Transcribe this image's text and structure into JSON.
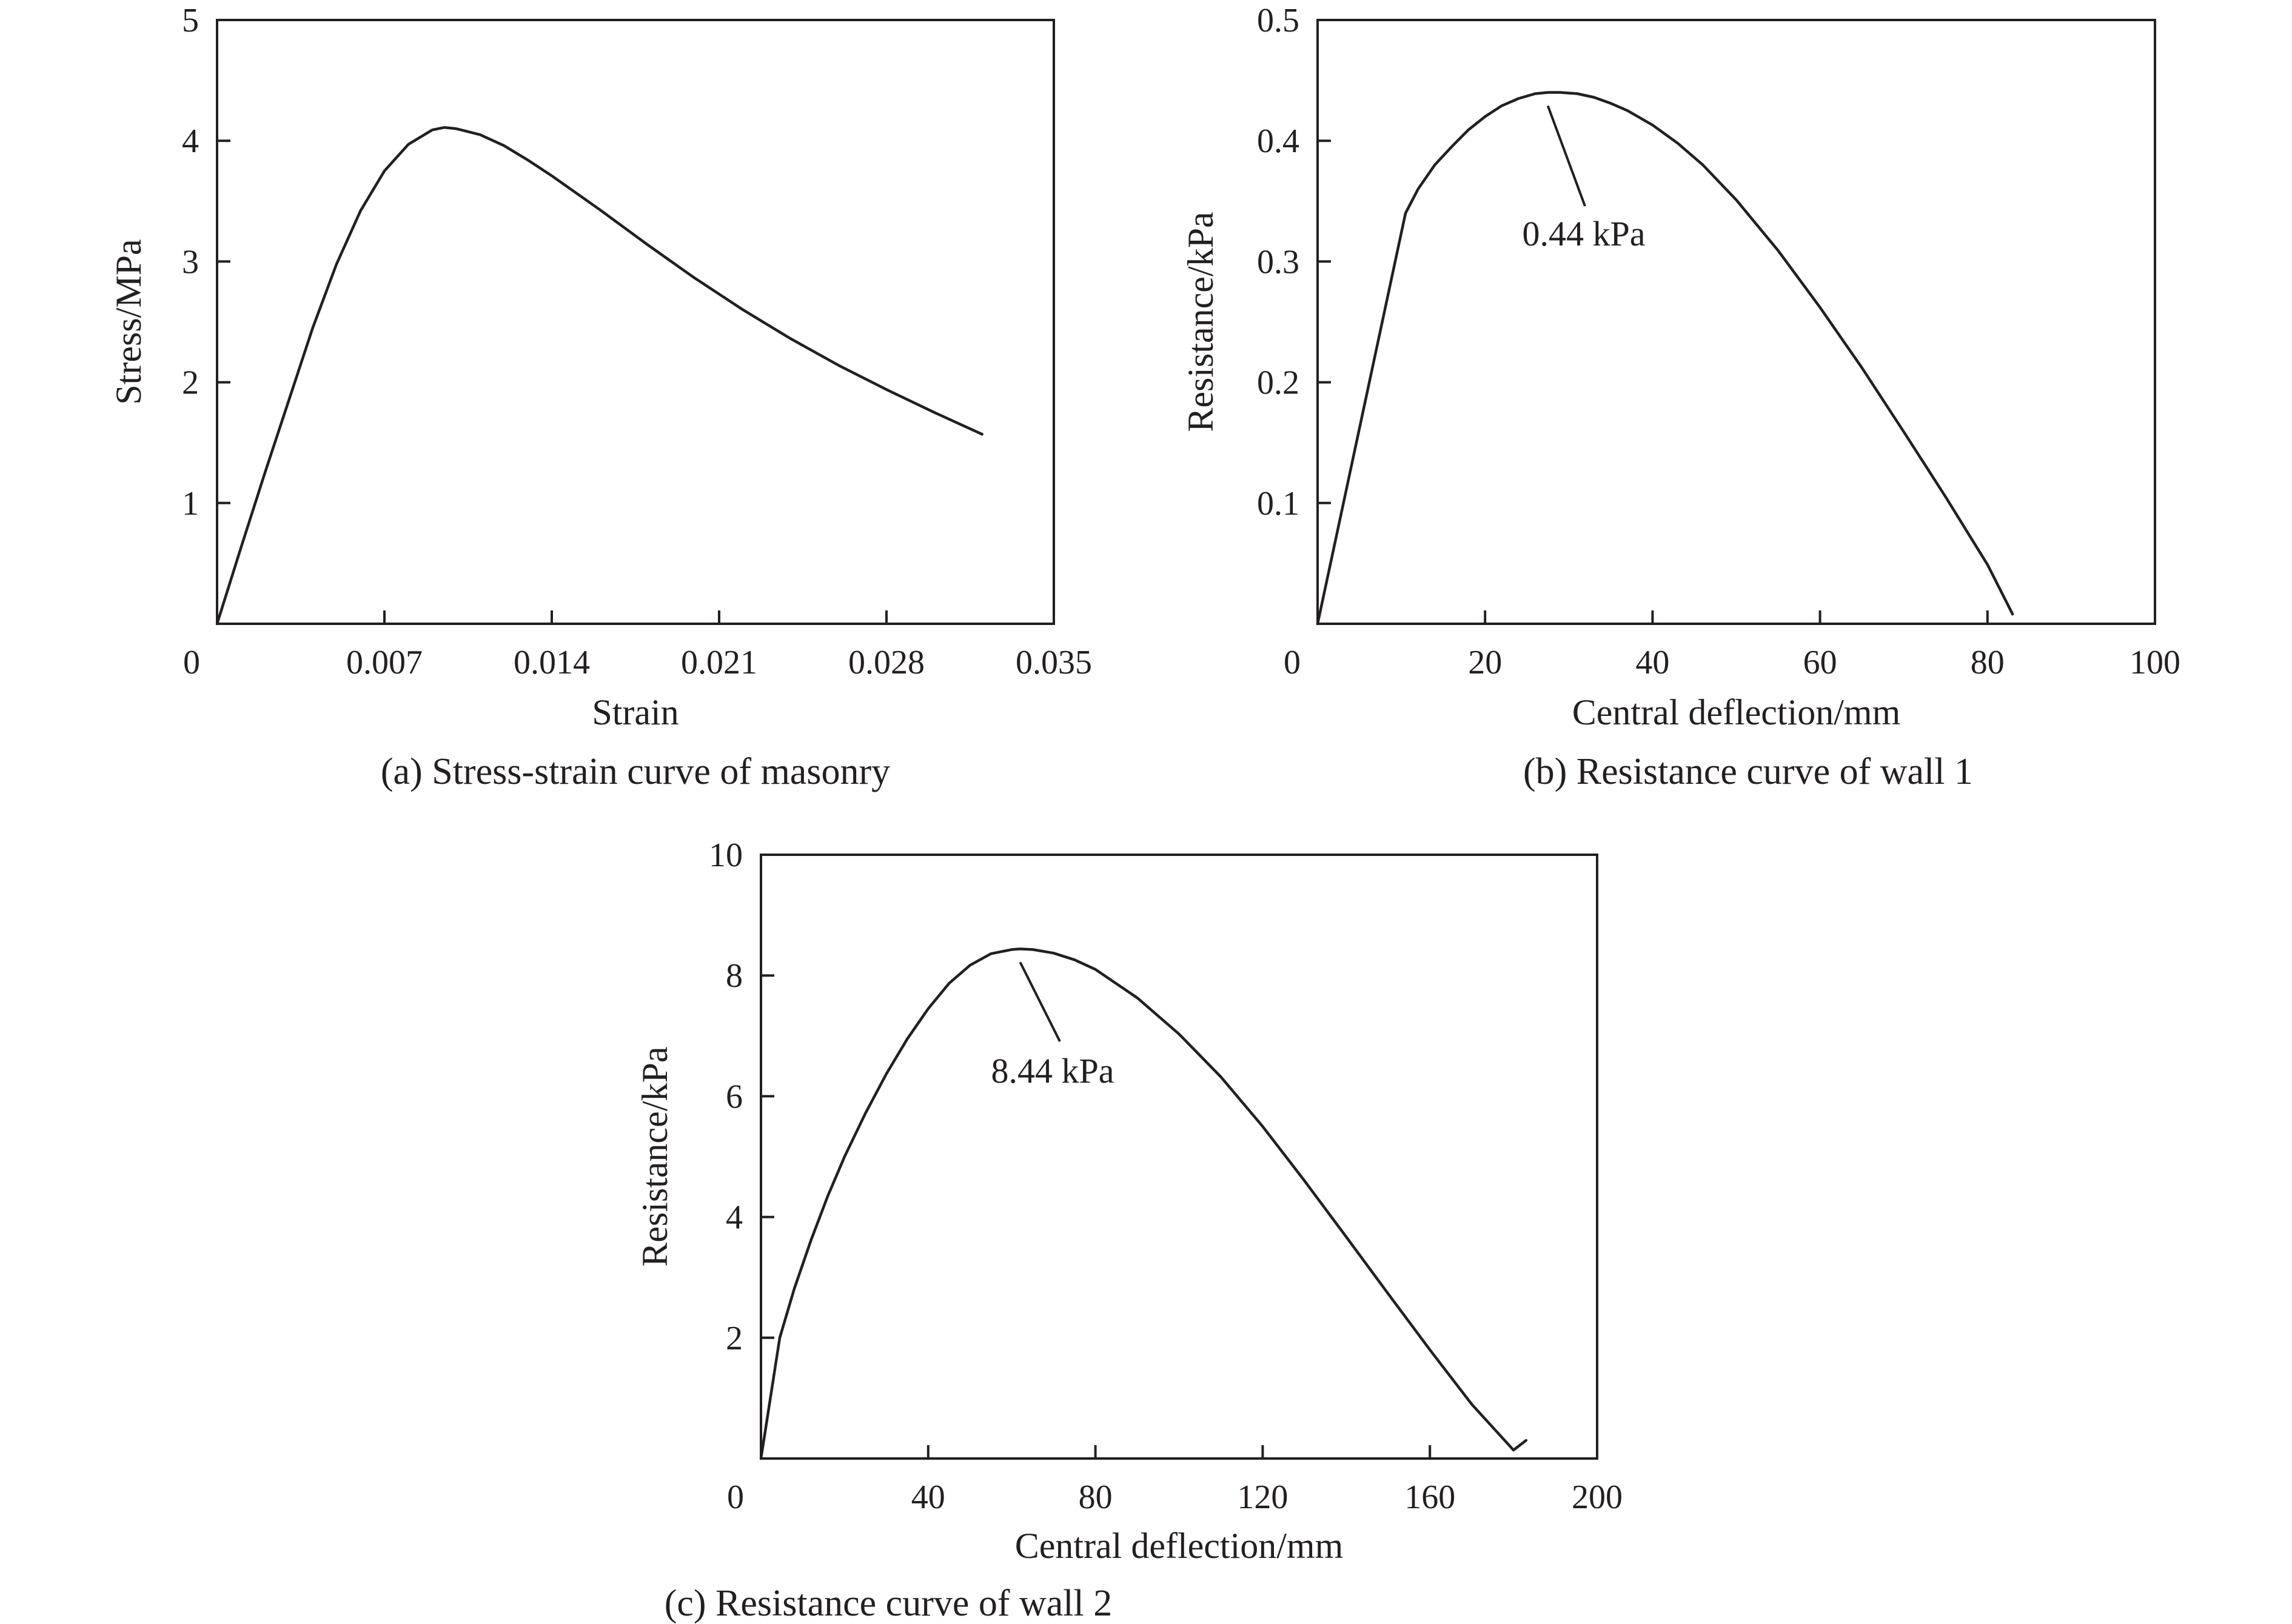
{
  "chart_data": [
    {
      "id": "a",
      "type": "line",
      "caption": "(a) Stress-strain curve of masonry",
      "xlabel": "Strain",
      "ylabel": "Stress/MPa",
      "xlim": [
        0,
        0.035
      ],
      "ylim": [
        0,
        5
      ],
      "xticks": [
        0,
        0.007,
        0.014,
        0.021,
        0.028,
        0.035
      ],
      "xtick_labels": [
        "0",
        "0.007",
        "0.014",
        "0.021",
        "0.028",
        "0.035"
      ],
      "yticks": [
        1,
        2,
        3,
        4,
        5
      ],
      "ytick_labels": [
        "1",
        "2",
        "3",
        "4",
        "5"
      ],
      "grid": false,
      "series": [
        {
          "x": [
            0,
            0.001,
            0.002,
            0.003,
            0.004,
            0.005,
            0.006,
            0.007,
            0.008,
            0.009,
            0.0095,
            0.01,
            0.011,
            0.012,
            0.013,
            0.014,
            0.016,
            0.018,
            0.02,
            0.022,
            0.024,
            0.026,
            0.028,
            0.03,
            0.032
          ],
          "y": [
            0,
            0.63,
            1.25,
            1.85,
            2.45,
            2.98,
            3.42,
            3.75,
            3.97,
            4.09,
            4.11,
            4.1,
            4.05,
            3.96,
            3.84,
            3.71,
            3.43,
            3.14,
            2.86,
            2.6,
            2.36,
            2.14,
            1.94,
            1.75,
            1.57
          ]
        }
      ],
      "annotations": []
    },
    {
      "id": "b",
      "type": "line",
      "caption": "(b) Resistance curve of  wall 1",
      "xlabel": "Central deflection/mm",
      "ylabel": "Resistance/kPa",
      "xlim": [
        0,
        100
      ],
      "ylim": [
        0,
        0.5
      ],
      "xticks": [
        0,
        20,
        40,
        60,
        80,
        100
      ],
      "xtick_labels": [
        "0",
        "20",
        "40",
        "60",
        "80",
        "100"
      ],
      "yticks": [
        0.1,
        0.2,
        0.3,
        0.4,
        0.5
      ],
      "ytick_labels": [
        "0.1",
        "0.2",
        "0.3",
        "0.4",
        "0.5"
      ],
      "grid": false,
      "series": [
        {
          "x": [
            0,
            10.5,
            12,
            14,
            16,
            18,
            20,
            22,
            24,
            26,
            27.5,
            29,
            31,
            33,
            35,
            37,
            40,
            43,
            46,
            50,
            55,
            60,
            65,
            70,
            75,
            80,
            83
          ],
          "y": [
            0,
            0.34,
            0.36,
            0.38,
            0.395,
            0.409,
            0.42,
            0.429,
            0.435,
            0.439,
            0.44,
            0.44,
            0.439,
            0.436,
            0.431,
            0.425,
            0.413,
            0.398,
            0.38,
            0.351,
            0.309,
            0.262,
            0.212,
            0.159,
            0.105,
            0.049,
            0.008
          ]
        }
      ],
      "annotations": [
        {
          "text": "0.44 kPa",
          "x": 27.5,
          "y": 0.44
        }
      ]
    },
    {
      "id": "c",
      "type": "line",
      "caption": "(c) Resistance curve of  wall 2",
      "xlabel": "Central deflection/mm",
      "ylabel": "Resistance/kPa",
      "xlim": [
        0,
        200
      ],
      "ylim": [
        0,
        10
      ],
      "xticks": [
        0,
        40,
        80,
        120,
        160,
        200
      ],
      "xtick_labels": [
        "0",
        "40",
        "80",
        "120",
        "160",
        "200"
      ],
      "yticks": [
        2,
        4,
        6,
        8,
        10
      ],
      "ytick_labels": [
        "2",
        "4",
        "6",
        "8",
        "10"
      ],
      "grid": false,
      "series": [
        {
          "x": [
            0,
            4.5,
            8,
            12,
            16,
            20,
            25,
            30,
            35,
            40,
            45,
            50,
            55,
            60,
            62,
            65,
            70,
            75,
            80,
            90,
            100,
            110,
            120,
            130,
            140,
            150,
            160,
            170,
            180,
            183
          ],
          "y": [
            0,
            2.0,
            2.82,
            3.62,
            4.35,
            5.0,
            5.72,
            6.37,
            6.95,
            7.45,
            7.87,
            8.17,
            8.36,
            8.43,
            8.44,
            8.43,
            8.37,
            8.26,
            8.1,
            7.63,
            7.03,
            6.32,
            5.5,
            4.6,
            3.67,
            2.73,
            1.8,
            0.9,
            0.14,
            0.3
          ]
        }
      ],
      "annotations": [
        {
          "text": "8.44 kPa",
          "x": 62,
          "y": 8.44
        }
      ]
    }
  ]
}
